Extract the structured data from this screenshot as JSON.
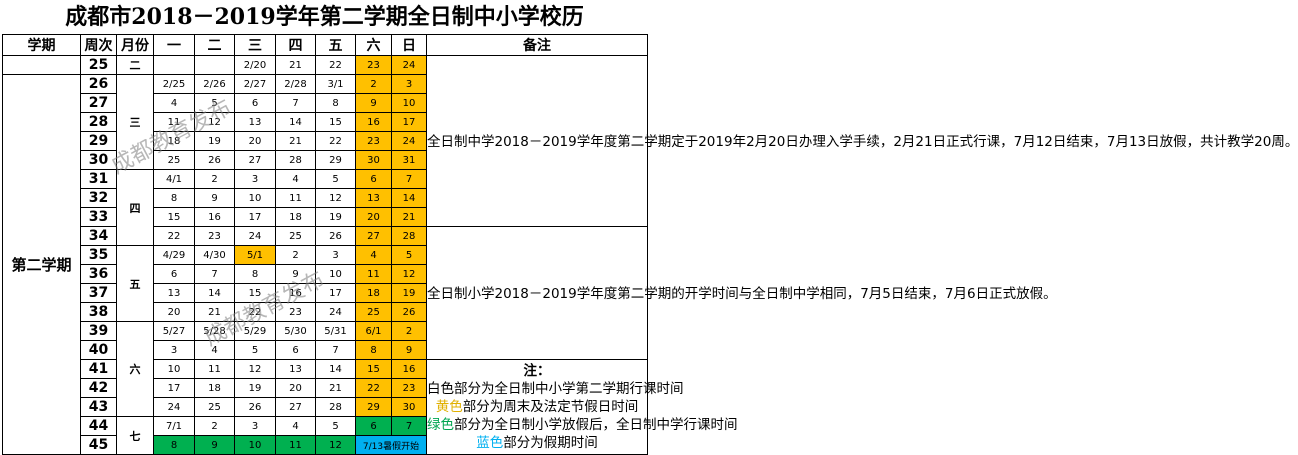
{
  "title": "成都市2018－2019学年第二学期全日制中小学校历",
  "headers": {
    "semester": "学期",
    "week": "周次",
    "month": "月份",
    "days": [
      "一",
      "二",
      "三",
      "四",
      "五",
      "六",
      "日"
    ],
    "notes": "备注"
  },
  "semester_label": "第二学期",
  "months": {
    "feb": "二",
    "mar": "三",
    "apr": "四",
    "may": "五",
    "jun": "六",
    "jul": "七"
  },
  "weeks": [
    {
      "week": "25",
      "days": [
        "",
        "",
        "2/20",
        "21",
        "22",
        "23",
        "24"
      ]
    },
    {
      "week": "26",
      "days": [
        "2/25",
        "2/26",
        "2/27",
        "2/28",
        "3/1",
        "2",
        "3"
      ]
    },
    {
      "week": "27",
      "days": [
        "4",
        "5",
        "6",
        "7",
        "8",
        "9",
        "10"
      ]
    },
    {
      "week": "28",
      "days": [
        "11",
        "12",
        "13",
        "14",
        "15",
        "16",
        "17"
      ]
    },
    {
      "week": "29",
      "days": [
        "18",
        "19",
        "20",
        "21",
        "22",
        "23",
        "24"
      ]
    },
    {
      "week": "30",
      "days": [
        "25",
        "26",
        "27",
        "28",
        "29",
        "30",
        "31"
      ]
    },
    {
      "week": "31",
      "days": [
        "4/1",
        "2",
        "3",
        "4",
        "5",
        "6",
        "7"
      ]
    },
    {
      "week": "32",
      "days": [
        "8",
        "9",
        "10",
        "11",
        "12",
        "13",
        "14"
      ]
    },
    {
      "week": "33",
      "days": [
        "15",
        "16",
        "17",
        "18",
        "19",
        "20",
        "21"
      ]
    },
    {
      "week": "34",
      "days": [
        "22",
        "23",
        "24",
        "25",
        "26",
        "27",
        "28"
      ]
    },
    {
      "week": "35",
      "days": [
        "4/29",
        "4/30",
        "5/1",
        "2",
        "3",
        "4",
        "5"
      ]
    },
    {
      "week": "36",
      "days": [
        "6",
        "7",
        "8",
        "9",
        "10",
        "11",
        "12"
      ]
    },
    {
      "week": "37",
      "days": [
        "13",
        "14",
        "15",
        "16",
        "17",
        "18",
        "19"
      ]
    },
    {
      "week": "38",
      "days": [
        "20",
        "21",
        "22",
        "23",
        "24",
        "25",
        "26"
      ]
    },
    {
      "week": "39",
      "days": [
        "5/27",
        "5/28",
        "5/29",
        "5/30",
        "5/31",
        "6/1",
        "2"
      ]
    },
    {
      "week": "40",
      "days": [
        "3",
        "4",
        "5",
        "6",
        "7",
        "8",
        "9"
      ]
    },
    {
      "week": "41",
      "days": [
        "10",
        "11",
        "12",
        "13",
        "14",
        "15",
        "16"
      ]
    },
    {
      "week": "42",
      "days": [
        "17",
        "18",
        "19",
        "20",
        "21",
        "22",
        "23"
      ]
    },
    {
      "week": "43",
      "days": [
        "24",
        "25",
        "26",
        "27",
        "28",
        "29",
        "30"
      ]
    },
    {
      "week": "44",
      "days": [
        "7/1",
        "2",
        "3",
        "4",
        "5",
        "6",
        "7"
      ]
    },
    {
      "week": "45",
      "days": [
        "8",
        "9",
        "10",
        "11",
        "12"
      ],
      "holiday": "7/13暑假开始"
    }
  ],
  "notes": {
    "p1": "全日制中学2018－2019学年度第二学期定于2019年2月20日办理入学手续，2月21日正式行课，7月12日结束，7月13日放假，共计教学20周。",
    "p2": "全日制小学2018－2019学年度第二学期的开学时间与全日制中学相同，7月5日结束，7月6日正式放假。",
    "label": "注：",
    "white_word": "白色",
    "white_text": "部分为全日制中小学第二学期行课时间",
    "yellow_word": "黄色",
    "yellow_text": "部分为周末及法定节假日时间",
    "green_word": "绿色",
    "green_text": "部分为全日制小学放假后，全日制中学行课时间",
    "blue_word": "蓝色",
    "blue_text": "部分为假期时间"
  },
  "watermark": "成都教育发布",
  "colors": {
    "yellow": "#ffc000",
    "green": "#00b050",
    "blue": "#00b0f0"
  }
}
